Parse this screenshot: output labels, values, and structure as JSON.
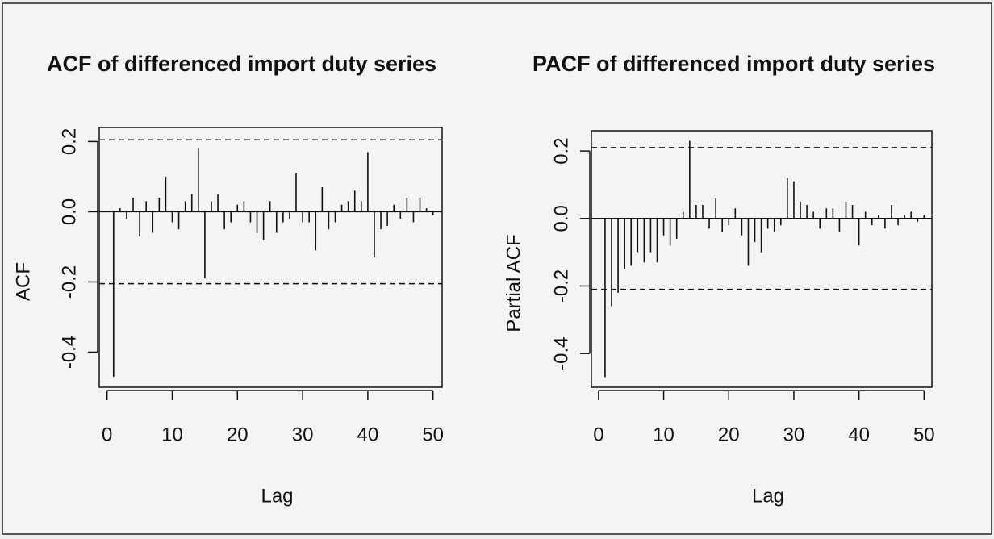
{
  "chart_data": [
    {
      "type": "acf",
      "title": "ACF of differenced import duty series",
      "xlabel": "Lag",
      "ylabel": "ACF",
      "x": [
        1,
        2,
        3,
        4,
        5,
        6,
        7,
        8,
        9,
        10,
        11,
        12,
        13,
        14,
        15,
        16,
        17,
        18,
        19,
        20,
        21,
        22,
        23,
        24,
        25,
        26,
        27,
        28,
        29,
        30,
        31,
        32,
        33,
        34,
        35,
        36,
        37,
        38,
        39,
        40,
        41,
        42,
        43,
        44,
        45,
        46,
        47,
        48,
        49,
        50
      ],
      "values": [
        -0.47,
        0.01,
        -0.02,
        0.04,
        -0.07,
        0.03,
        -0.06,
        0.04,
        0.1,
        -0.03,
        -0.05,
        0.03,
        0.05,
        0.18,
        -0.19,
        0.03,
        0.05,
        -0.05,
        -0.03,
        0.02,
        0.03,
        -0.03,
        -0.06,
        -0.08,
        0.03,
        -0.06,
        -0.03,
        -0.02,
        0.11,
        -0.03,
        -0.03,
        -0.11,
        0.07,
        -0.05,
        -0.03,
        0.02,
        0.03,
        0.06,
        0.03,
        0.17,
        -0.13,
        -0.05,
        -0.04,
        0.02,
        -0.02,
        0.04,
        -0.03,
        0.04,
        0.01,
        -0.01
      ],
      "conf_limits": [
        0.205,
        -0.205
      ],
      "color": "#111111",
      "xlim": [
        -1.2,
        51.4
      ],
      "ylim": [
        -0.5,
        0.24
      ],
      "xticks": [
        0,
        10,
        20,
        30,
        40,
        50
      ],
      "yticks": [
        -0.4,
        -0.2,
        {
          "value": 0,
          "label": "0.0"
        },
        0.2
      ]
    },
    {
      "type": "acf",
      "title": "PACF of differenced import duty series",
      "xlabel": "Lag",
      "ylabel": "Partial ACF",
      "x": [
        1,
        2,
        3,
        4,
        5,
        6,
        7,
        8,
        9,
        10,
        11,
        12,
        13,
        14,
        15,
        16,
        17,
        18,
        19,
        20,
        21,
        22,
        23,
        24,
        25,
        26,
        27,
        28,
        29,
        30,
        31,
        32,
        33,
        34,
        35,
        36,
        37,
        38,
        39,
        40,
        41,
        42,
        43,
        44,
        45,
        46,
        47,
        48,
        49,
        50
      ],
      "values": [
        -0.47,
        -0.26,
        -0.22,
        -0.15,
        -0.14,
        -0.1,
        -0.13,
        -0.1,
        -0.13,
        -0.05,
        -0.08,
        -0.06,
        0.02,
        0.23,
        0.04,
        0.04,
        -0.03,
        0.06,
        -0.04,
        -0.02,
        0.03,
        -0.05,
        -0.14,
        -0.07,
        -0.1,
        -0.03,
        -0.04,
        -0.02,
        0.12,
        0.11,
        0.05,
        0.04,
        0.02,
        -0.03,
        0.03,
        0.03,
        -0.04,
        0.05,
        0.04,
        -0.08,
        0.02,
        -0.02,
        0.01,
        -0.03,
        0.04,
        -0.02,
        0.01,
        0.02,
        -0.01,
        0.01
      ],
      "conf_limits": [
        0.21,
        -0.21
      ],
      "color": "#111111",
      "xlim": [
        -1.1,
        51.2
      ],
      "ylim": [
        -0.5,
        0.26
      ],
      "xticks": [
        0,
        10,
        20,
        30,
        40,
        50
      ],
      "yticks": [
        -0.4,
        -0.2,
        {
          "value": 0,
          "label": "0.0"
        },
        0.2
      ]
    }
  ]
}
